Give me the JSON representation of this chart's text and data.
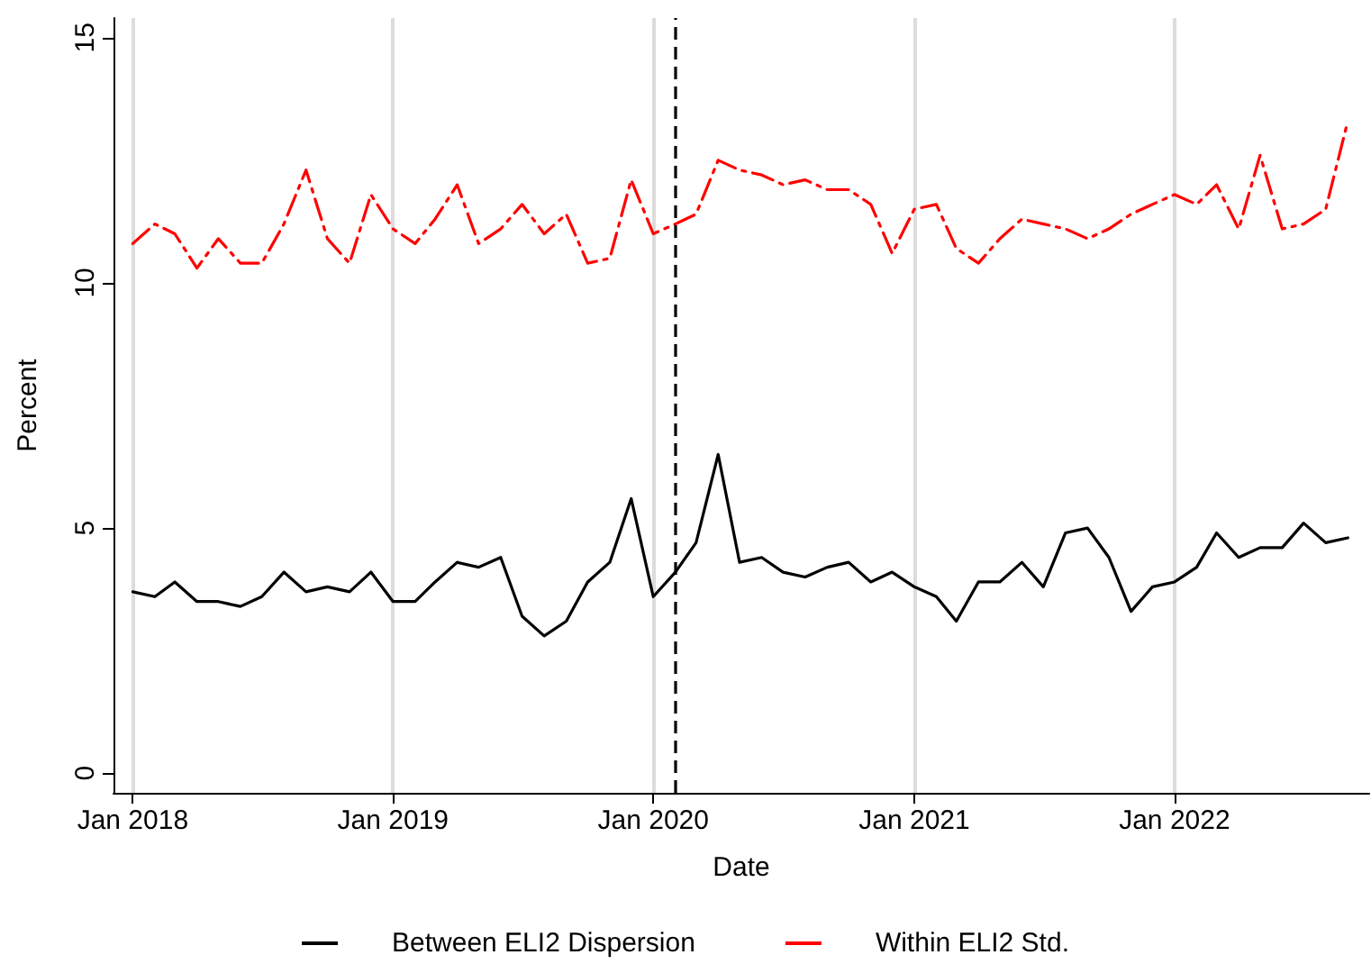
{
  "chart_data": {
    "type": "line",
    "xlabel": "Date",
    "ylabel": "Percent",
    "x": [
      "2018-01",
      "2018-02",
      "2018-03",
      "2018-04",
      "2018-05",
      "2018-06",
      "2018-07",
      "2018-08",
      "2018-09",
      "2018-10",
      "2018-11",
      "2018-12",
      "2019-01",
      "2019-02",
      "2019-03",
      "2019-04",
      "2019-05",
      "2019-06",
      "2019-07",
      "2019-08",
      "2019-09",
      "2019-10",
      "2019-11",
      "2019-12",
      "2020-01",
      "2020-02",
      "2020-03",
      "2020-04",
      "2020-05",
      "2020-06",
      "2020-07",
      "2020-08",
      "2020-09",
      "2020-10",
      "2020-11",
      "2020-12",
      "2021-01",
      "2021-02",
      "2021-03",
      "2021-04",
      "2021-05",
      "2021-06",
      "2021-07",
      "2021-08",
      "2021-09",
      "2021-10",
      "2021-11",
      "2021-12",
      "2022-01",
      "2022-02",
      "2022-03",
      "2022-04",
      "2022-05",
      "2022-06",
      "2022-07",
      "2022-08",
      "2022-09"
    ],
    "series": [
      {
        "name": "Between ELI2 Dispersion",
        "color": "#000000",
        "line_style": "solid",
        "values": [
          3.7,
          3.6,
          3.9,
          3.5,
          3.5,
          3.4,
          3.6,
          4.1,
          3.7,
          3.8,
          3.7,
          4.1,
          3.5,
          3.5,
          3.9,
          4.3,
          4.2,
          4.4,
          3.2,
          2.8,
          3.1,
          3.9,
          4.3,
          5.6,
          3.6,
          4.1,
          4.7,
          6.5,
          4.3,
          4.4,
          4.1,
          4.0,
          4.2,
          4.3,
          3.9,
          4.1,
          3.8,
          3.6,
          3.1,
          3.9,
          3.9,
          4.3,
          3.8,
          4.9,
          5.0,
          4.4,
          3.3,
          3.8,
          3.9,
          4.2,
          4.9,
          4.4,
          4.6,
          4.6,
          5.1,
          4.7,
          4.8
        ]
      },
      {
        "name": "Within ELI2 Std.",
        "color": "#ff0000",
        "line_style": "dashed",
        "values": [
          10.8,
          11.2,
          11.0,
          10.3,
          10.9,
          10.4,
          10.4,
          11.2,
          12.3,
          10.9,
          10.4,
          11.8,
          11.1,
          10.8,
          11.3,
          12.0,
          10.8,
          11.1,
          11.6,
          11.0,
          11.4,
          10.4,
          10.5,
          12.1,
          11.0,
          11.2,
          11.4,
          12.5,
          12.3,
          12.2,
          12.0,
          12.1,
          11.9,
          11.9,
          11.6,
          10.6,
          11.5,
          11.6,
          10.7,
          10.4,
          10.9,
          11.3,
          11.2,
          11.1,
          10.9,
          11.1,
          11.4,
          11.6,
          11.8,
          11.6,
          12.0,
          11.1,
          12.6,
          11.1,
          11.2,
          11.5,
          13.3
        ]
      }
    ],
    "xlim": [
      "2017-12-05",
      "2022-10-01"
    ],
    "xticks": [
      {
        "value": "2018-01",
        "label": "Jan 2018"
      },
      {
        "value": "2019-01",
        "label": "Jan 2019"
      },
      {
        "value": "2020-01",
        "label": "Jan 2020"
      },
      {
        "value": "2021-01",
        "label": "Jan 2021"
      },
      {
        "value": "2022-01",
        "label": "Jan 2022"
      }
    ],
    "ylim": [
      -0.4,
      15.4
    ],
    "yticks": [
      0,
      5,
      10,
      15
    ],
    "ref_lines": [
      {
        "axis": "x",
        "value": "2020-02",
        "color": "#000000",
        "line_style": "dashed"
      }
    ],
    "grid": "x",
    "legend": "bottom",
    "marker": "none"
  }
}
